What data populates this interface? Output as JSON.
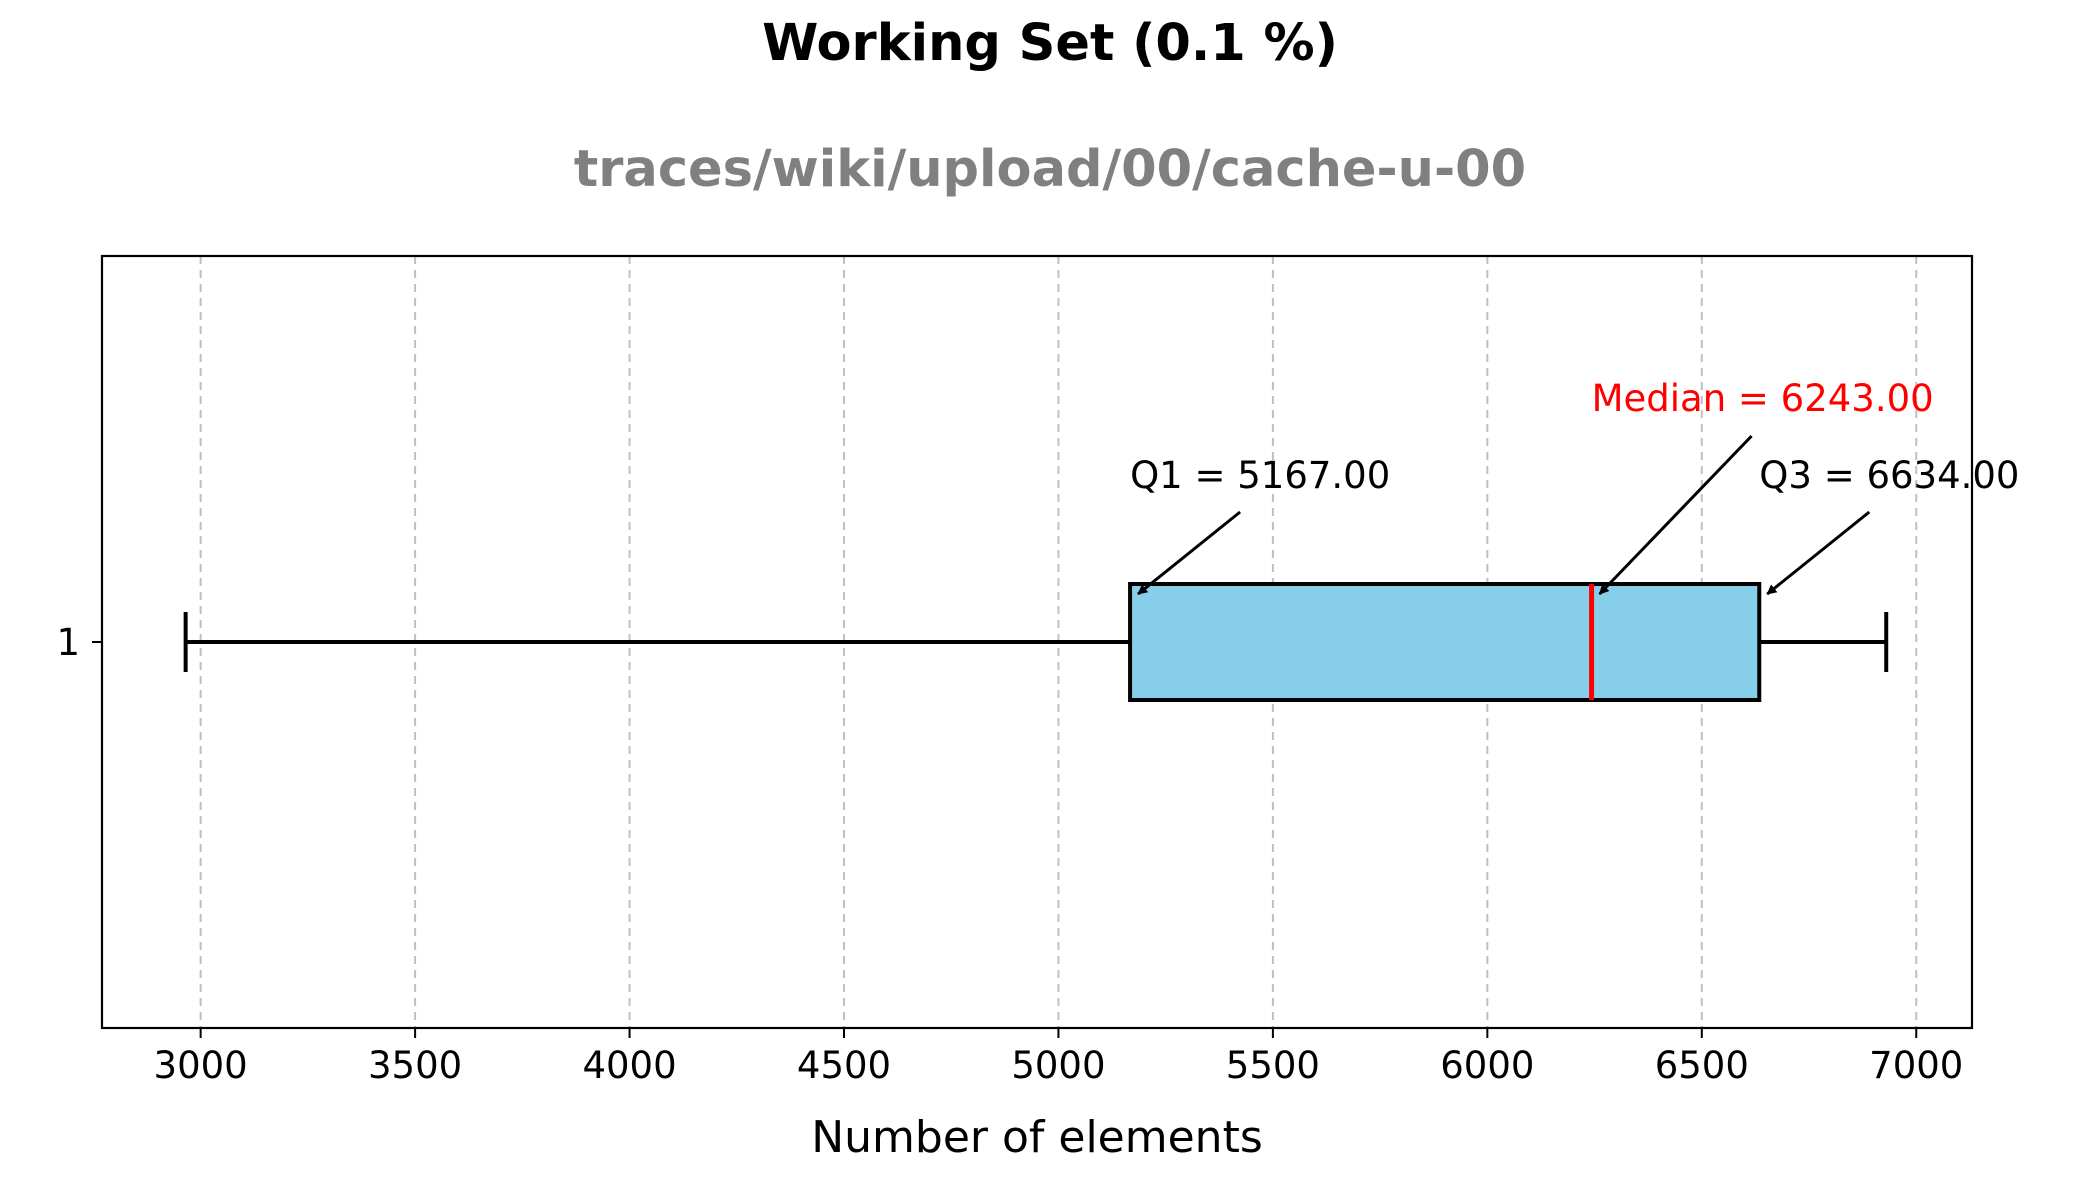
{
  "chart_data": {
    "type": "boxplot",
    "orientation": "horizontal",
    "title": "Working Set (0.1 %)",
    "subtitle": "traces/wiki/upload/00/cache-u-00",
    "xlabel": "Number of elements",
    "ylabel": "",
    "xlim": [
      2770,
      7130
    ],
    "xticks": [
      3000,
      3500,
      4000,
      4500,
      5000,
      5500,
      6000,
      6500,
      7000
    ],
    "ytick_labels": [
      "1"
    ],
    "grid": {
      "x": true,
      "y": false,
      "style": "dashed"
    },
    "series": [
      {
        "category": "1",
        "whisker_low": 2965,
        "q1": 5167.0,
        "median": 6243.0,
        "q3": 6634.0,
        "whisker_high": 6930
      }
    ],
    "annotations": [
      {
        "key": "q1",
        "text": "Q1 = 5167.00",
        "color": "#000000"
      },
      {
        "key": "median",
        "text": "Median = 6243.00",
        "color": "#ff0000"
      },
      {
        "key": "q3",
        "text": "Q3 = 6634.00",
        "color": "#000000"
      }
    ],
    "colors": {
      "box_fill": "#87ceeb",
      "box_edge": "#000000",
      "median_line": "#ff0000",
      "grid": "#c0c0c0"
    }
  }
}
